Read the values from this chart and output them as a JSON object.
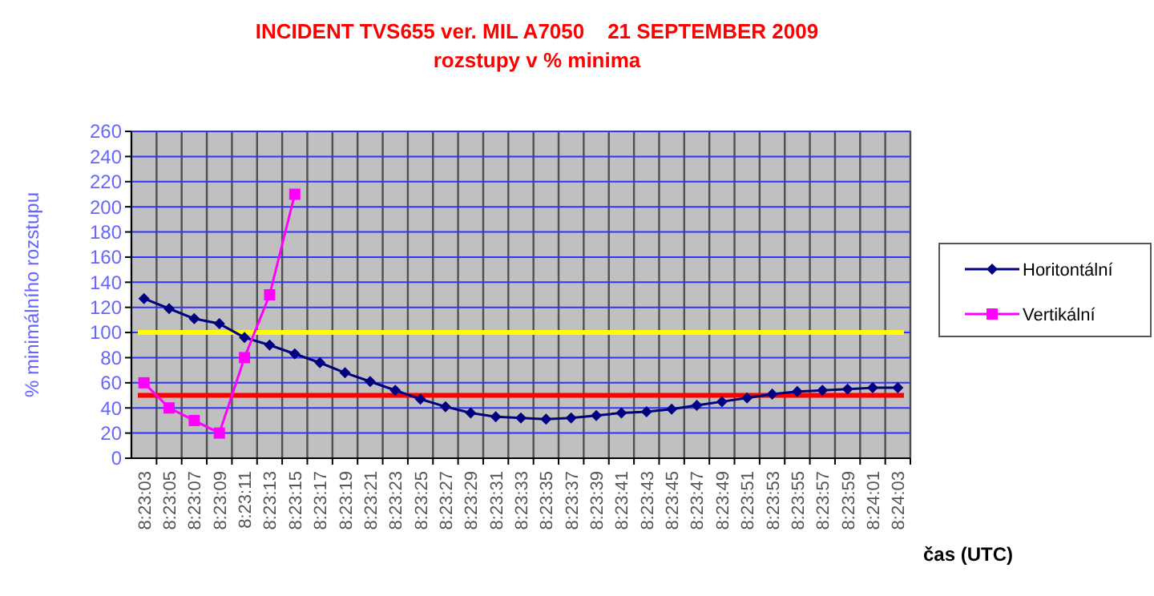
{
  "chart_data": {
    "type": "line",
    "title": "INCIDENT TVS655 ver. MIL A7050    21 SEPTEMBER 2009",
    "subtitle": "rozstupy v % minima",
    "xlabel": "čas (UTC)",
    "ylabel": "% minimálního rozstupu",
    "categories": [
      "8:23:03",
      "8:23:05",
      "8:23:07",
      "8:23:09",
      "8:23:11",
      "8:23:13",
      "8:23:15",
      "8:23:17",
      "8:23:19",
      "8:23:21",
      "8:23:23",
      "8:23:25",
      "8:23:27",
      "8:23:29",
      "8:23:31",
      "8:23:33",
      "8:23:35",
      "8:23:37",
      "8:23:39",
      "8:23:41",
      "8:23:43",
      "8:23:45",
      "8:23:47",
      "8:23:49",
      "8:23:51",
      "8:23:53",
      "8:23:55",
      "8:23:57",
      "8:23:59",
      "8:24:01",
      "8:24:03"
    ],
    "series": [
      {
        "name": "Horitontální",
        "color": "#000080",
        "marker": "diamond",
        "values": [
          127,
          119,
          111,
          107,
          96,
          90,
          83,
          76,
          68,
          61,
          54,
          47,
          41,
          36,
          33,
          32,
          31,
          32,
          34,
          36,
          37,
          39,
          42,
          45,
          48,
          51,
          53,
          54,
          55,
          56,
          56
        ]
      },
      {
        "name": "Vertikální",
        "color": "#ff00ff",
        "marker": "square",
        "values": [
          60,
          40,
          30,
          20,
          80,
          130,
          210,
          null,
          null,
          null,
          null,
          null,
          null,
          null,
          null,
          null,
          null,
          null,
          null,
          null,
          null,
          null,
          null,
          null,
          null,
          null,
          null,
          null,
          null,
          null,
          null
        ]
      }
    ],
    "ylim": [
      0,
      260
    ],
    "yticks": [
      0,
      20,
      40,
      60,
      80,
      100,
      120,
      140,
      160,
      180,
      200,
      220,
      240,
      260
    ],
    "ref_lines": [
      {
        "axis": "y",
        "value": 100,
        "color": "#ffff00"
      },
      {
        "axis": "y",
        "value": 50,
        "color": "#ff0000"
      }
    ],
    "grid": true,
    "legend": "right",
    "line_style": "solid"
  }
}
